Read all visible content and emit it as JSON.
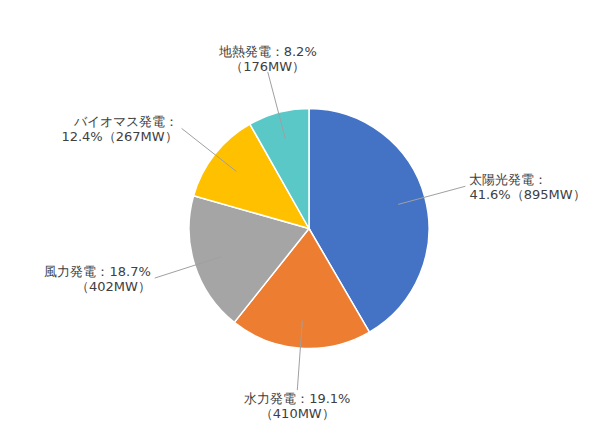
{
  "chart_data": {
    "type": "pie",
    "values": [
      41.6,
      19.1,
      18.7,
      12.4,
      8.2
    ],
    "value_labels": [
      "太陽光発電：\n41.6%（895MW）",
      "水力発電：19.1%\n（410MW）",
      "風力発電：18.7%\n（402MW）",
      "バイオマス発電：\n12.4%（267MW）",
      "地熱発電：8.2%\n（176MW）"
    ],
    "colors": [
      "#4472C4",
      "#ED7D31",
      "#A5A5A5",
      "#FFC000",
      "#5BC8C8"
    ],
    "data_labels": true
  }
}
